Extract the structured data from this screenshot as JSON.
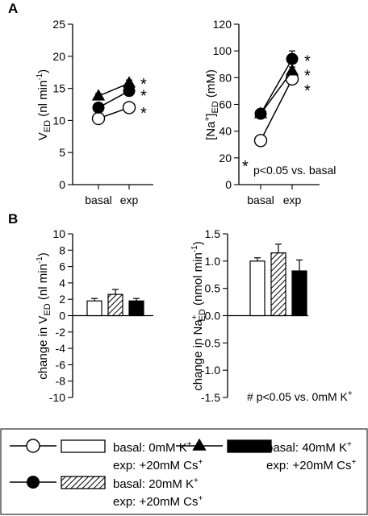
{
  "chart_data": [
    {
      "panel": "A",
      "type": "line",
      "categories": [
        "basal",
        "exp"
      ],
      "ylabel_parts": [
        "V",
        "ED",
        " (nl min",
        "-1",
        ")"
      ],
      "ylim": [
        0,
        25
      ],
      "yticks": [
        0,
        5,
        10,
        15,
        20,
        25
      ],
      "series": [
        {
          "marker": "triangle",
          "values": [
            13.8,
            15.8
          ],
          "err": [
            0.4,
            0.5
          ]
        },
        {
          "marker": "filled-circle",
          "values": [
            12.0,
            14.6
          ],
          "err": [
            0.4,
            0.5
          ]
        },
        {
          "marker": "open-circle",
          "values": [
            10.3,
            12.0
          ],
          "err": [
            0.3,
            0.4
          ]
        }
      ],
      "sig_stars": [
        "*",
        "*",
        "*"
      ],
      "sig_positions": [
        16.2,
        14.4,
        11.7
      ]
    },
    {
      "panel": "",
      "type": "line",
      "categories": [
        "basal",
        "exp"
      ],
      "ylabel_parts": [
        "[Na",
        "+",
        "]",
        "ED",
        " (mM)"
      ],
      "ylim": [
        0,
        120
      ],
      "yticks": [
        0,
        20,
        40,
        60,
        80,
        100,
        120
      ],
      "series": [
        {
          "marker": "triangle",
          "values": [
            53,
            85
          ],
          "err": [
            2,
            3
          ]
        },
        {
          "marker": "filled-circle",
          "values": [
            53,
            94
          ],
          "err": [
            2,
            6
          ]
        },
        {
          "marker": "open-circle",
          "values": [
            33,
            79
          ],
          "err": [
            2,
            3
          ]
        }
      ],
      "sig_stars": [
        "*",
        "*",
        "*"
      ],
      "sig_positions": [
        95,
        84,
        73
      ],
      "note_star": "*",
      "note": "p<0.05 vs. basal"
    },
    {
      "panel": "B",
      "type": "bar",
      "categories": [
        "0mM K+",
        "20mM K+",
        "40mM K+"
      ],
      "patterns": [
        "open",
        "hatched",
        "filled"
      ],
      "ylabel_parts": [
        "change in V",
        "ED",
        " (nl min",
        "-1",
        ")"
      ],
      "ylim": [
        -10,
        10
      ],
      "yticks": [
        10,
        8,
        6,
        4,
        2,
        0,
        -2,
        -4,
        -6,
        -8,
        -10
      ],
      "values": [
        1.8,
        2.6,
        1.8
      ],
      "err": [
        0.3,
        0.6,
        0.3
      ]
    },
    {
      "panel": "",
      "type": "bar",
      "categories": [
        "0mM K+",
        "20mM K+",
        "40mM K+"
      ],
      "patterns": [
        "open",
        "hatched",
        "filled"
      ],
      "ylabel_parts": [
        "change in Na",
        "+",
        "ED",
        " (nmol min",
        "-1",
        ")"
      ],
      "ylim": [
        -1.5,
        1.5
      ],
      "yticks": [
        "1.5",
        "1.0",
        "0.5",
        "0.0",
        "-0.5",
        "-1.0",
        "-1.5"
      ],
      "values": [
        1.0,
        1.15,
        0.82
      ],
      "err": [
        0.06,
        0.16,
        0.2
      ],
      "note_parts": [
        "# p<0.05 vs. 0mM K",
        "+"
      ]
    }
  ],
  "legend": {
    "entries": [
      {
        "marker": "open-circle",
        "bar": "open",
        "line1": "basal: 0mM K",
        "sup1": "+",
        "line2": "exp: +20mM Cs",
        "sup2": "+"
      },
      {
        "marker": "triangle",
        "bar": "filled",
        "line1": "basal: 40mM K",
        "sup1": "+",
        "line2": "exp: +20mM Cs",
        "sup2": "+"
      },
      {
        "marker": "filled-circle",
        "bar": "hatched",
        "line1": "basal: 20mM K",
        "sup1": "+",
        "line2": "exp: +20mM Cs",
        "sup2": "+"
      }
    ]
  }
}
